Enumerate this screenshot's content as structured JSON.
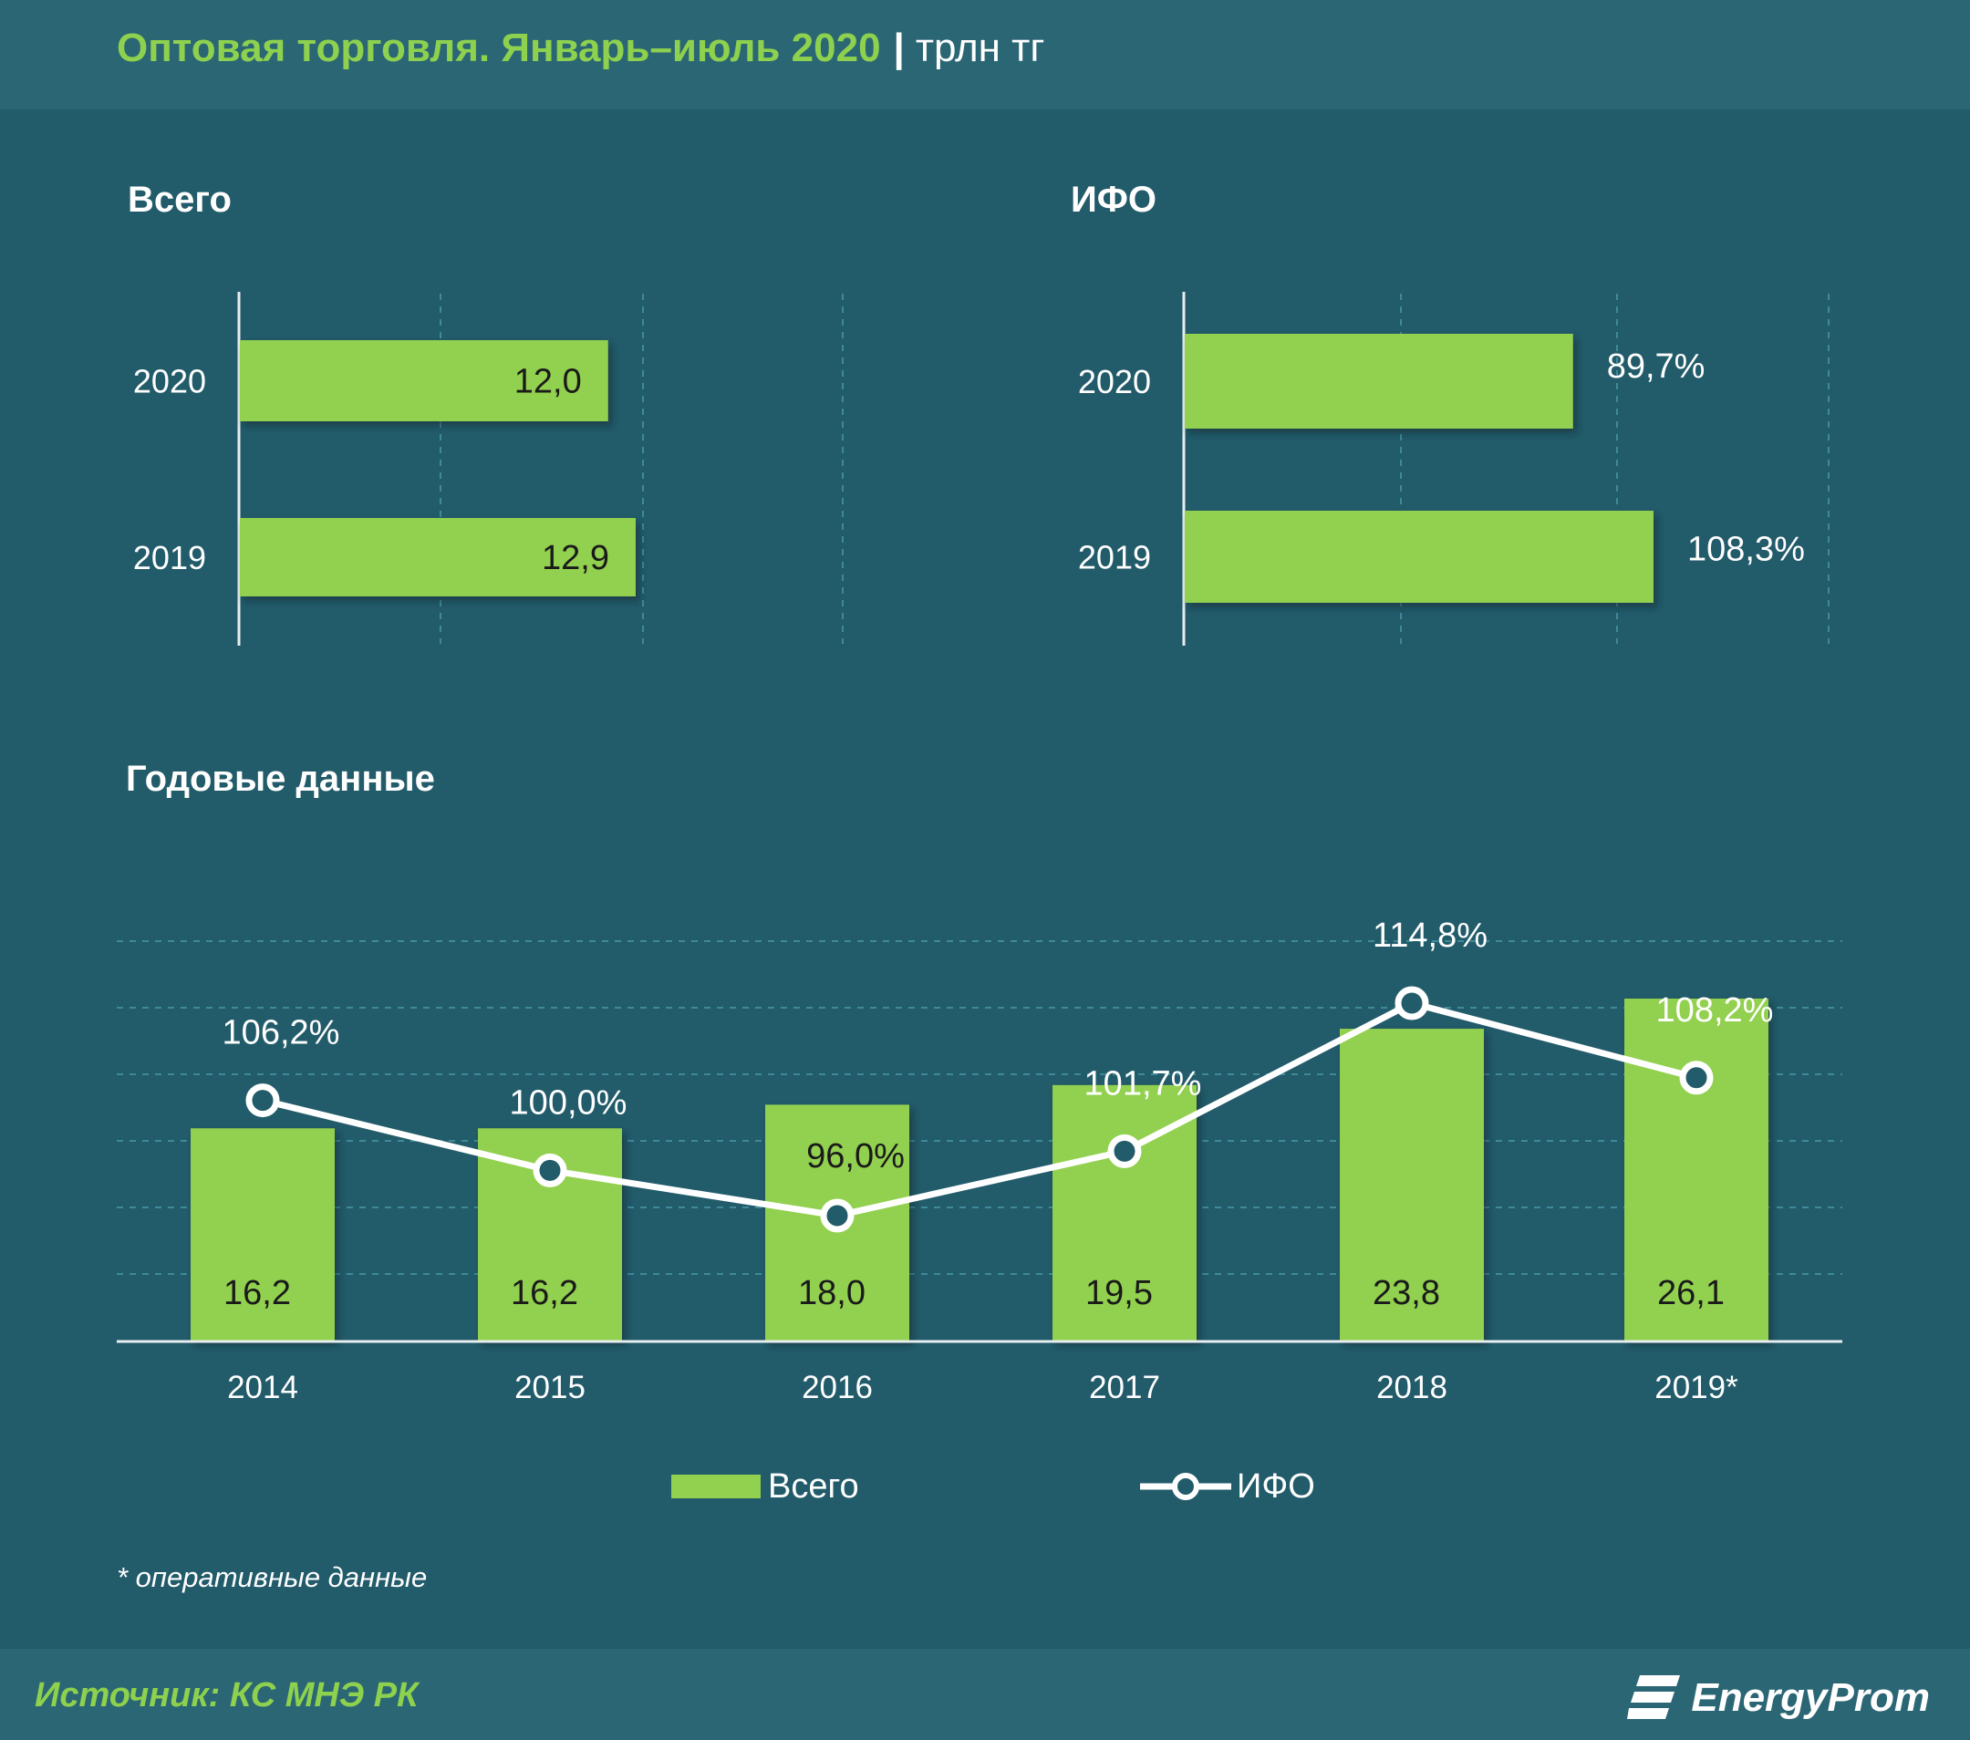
{
  "header": {
    "title": "Оптовая торговля. Январь–июль 2020",
    "separator": "|",
    "unit": "трлн тг"
  },
  "chart_data": [
    {
      "type": "bar",
      "orientation": "horizontal",
      "title": "Всего",
      "categories": [
        "2020",
        "2019"
      ],
      "values": [
        12.0,
        12.9
      ],
      "value_labels": [
        "12,0",
        "12,9"
      ],
      "xlim": [
        0,
        20
      ],
      "grid": true
    },
    {
      "type": "bar",
      "orientation": "horizontal",
      "title": "ИФО",
      "categories": [
        "2020",
        "2019"
      ],
      "values": [
        89.7,
        108.3
      ],
      "value_labels": [
        "89,7%",
        "108,3%"
      ],
      "xlim": [
        0,
        150
      ],
      "grid": true
    },
    {
      "type": "bar+line",
      "title": "Годовые данные",
      "categories": [
        "2014",
        "2015",
        "2016",
        "2017",
        "2018",
        "2019*"
      ],
      "series": [
        {
          "name": "Всего",
          "type": "bar",
          "values": [
            16.2,
            16.2,
            18.0,
            19.5,
            23.8,
            26.1
          ],
          "labels": [
            "16,2",
            "16,2",
            "18,0",
            "19,5",
            "23,8",
            "26,1"
          ]
        },
        {
          "name": "ИФО",
          "type": "line",
          "values": [
            106.2,
            100.0,
            96.0,
            101.7,
            114.8,
            108.2
          ],
          "labels": [
            "106,2%",
            "100,0%",
            "96,0%",
            "101,7%",
            "114,8%",
            "108,2%"
          ]
        }
      ],
      "legend": "bottom-center",
      "grid": true,
      "colors": {
        "bar": "#92d050",
        "line": "#ffffff",
        "marker_fill": "#225b6a"
      }
    }
  ],
  "footnote": "* оперативные данные",
  "footer": {
    "source": "Источник: КС МНЭ РК",
    "brand": "EnergyProm"
  }
}
